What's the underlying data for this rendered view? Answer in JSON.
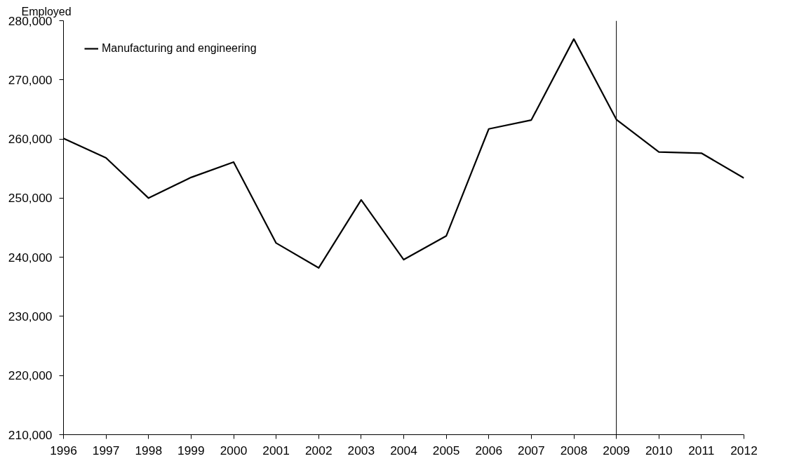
{
  "chart_data": {
    "type": "line",
    "ylabel": "Employed",
    "x": [
      1996,
      1997,
      1998,
      1999,
      2000,
      2001,
      2002,
      2003,
      2004,
      2005,
      2006,
      2007,
      2008,
      2009,
      2010,
      2011,
      2012
    ],
    "series": [
      {
        "name": "Manufacturing and engineering",
        "color": "#000000",
        "values": [
          260100,
          256800,
          250000,
          253500,
          256100,
          242400,
          238200,
          249700,
          239600,
          243600,
          261700,
          263200,
          276900,
          263300,
          257800,
          257600,
          253400
        ]
      }
    ],
    "xlim": [
      1996,
      2012
    ],
    "xticks": [
      1996,
      1997,
      1998,
      1999,
      2000,
      2001,
      2002,
      2003,
      2004,
      2005,
      2006,
      2007,
      2008,
      2009,
      2010,
      2011,
      2012
    ],
    "ylim": [
      210000,
      280000
    ],
    "yticks": [
      {
        "value": 210000,
        "label": "210,000"
      },
      {
        "value": 220000,
        "label": "220,000"
      },
      {
        "value": 230000,
        "label": "230,000"
      },
      {
        "value": 240000,
        "label": "240,000"
      },
      {
        "value": 250000,
        "label": "250,000"
      },
      {
        "value": 260000,
        "label": "260,000"
      },
      {
        "value": 270000,
        "label": "270,000"
      },
      {
        "value": 280000,
        "label": "280,000"
      }
    ],
    "ref_lines": [
      {
        "axis": "x",
        "value": 2009,
        "color": "#000000"
      }
    ],
    "grid": false,
    "legend": "top left",
    "marker": "none",
    "line_style": "solid"
  }
}
